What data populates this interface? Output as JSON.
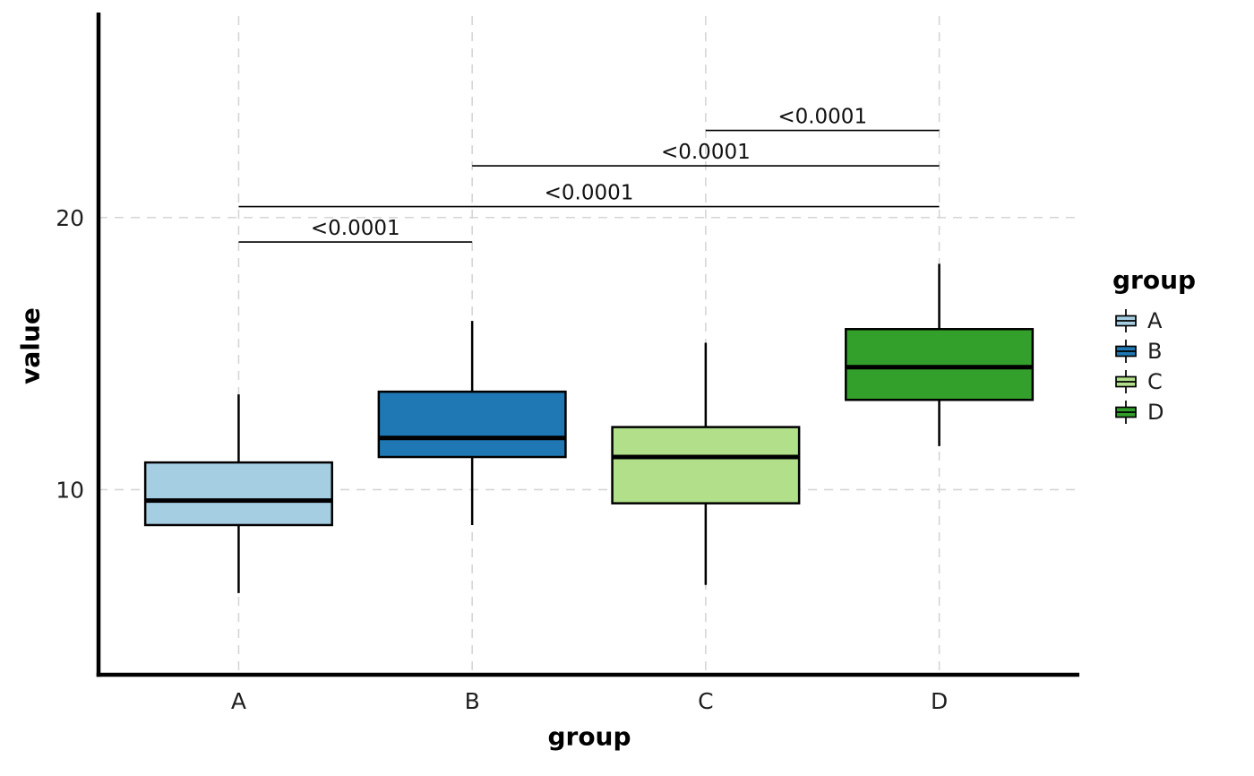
{
  "chart_data": {
    "type": "boxplot",
    "title": "",
    "xlabel": "group",
    "ylabel": "value",
    "ylim": [
      3.2,
      27.4
    ],
    "yticks": [
      10,
      20
    ],
    "categories": [
      "A",
      "B",
      "C",
      "D"
    ],
    "grid": "dashed light-gray horizontal at yticks and vertical at each category",
    "legend_position": "right",
    "boxes": [
      {
        "group": "A",
        "color": "#a6cee3",
        "whisker_low": 6.2,
        "q1": 8.7,
        "median": 9.6,
        "q3": 11.0,
        "whisker_high": 13.5
      },
      {
        "group": "B",
        "color": "#1f78b4",
        "whisker_low": 8.7,
        "q1": 11.2,
        "median": 11.9,
        "q3": 13.6,
        "whisker_high": 16.2
      },
      {
        "group": "C",
        "color": "#b2df8a",
        "whisker_low": 6.5,
        "q1": 9.5,
        "median": 11.2,
        "q3": 12.3,
        "whisker_high": 15.4
      },
      {
        "group": "D",
        "color": "#33a02c",
        "whisker_low": 11.6,
        "q1": 13.3,
        "median": 14.5,
        "q3": 15.9,
        "whisker_high": 18.3
      }
    ],
    "comparisons": [
      {
        "group1": "A",
        "group2": "B",
        "label": "<0.0001",
        "y": 19.1
      },
      {
        "group1": "A",
        "group2": "D",
        "label": "<0.0001",
        "y": 20.4
      },
      {
        "group1": "B",
        "group2": "D",
        "label": "<0.0001",
        "y": 21.9
      },
      {
        "group1": "C",
        "group2": "D",
        "label": "<0.0001",
        "y": 23.2
      }
    ],
    "legend": {
      "title": "group",
      "entries": [
        {
          "label": "A",
          "color": "#a6cee3"
        },
        {
          "label": "B",
          "color": "#1f78b4"
        },
        {
          "label": "C",
          "color": "#b2df8a"
        },
        {
          "label": "D",
          "color": "#33a02c"
        }
      ]
    }
  }
}
